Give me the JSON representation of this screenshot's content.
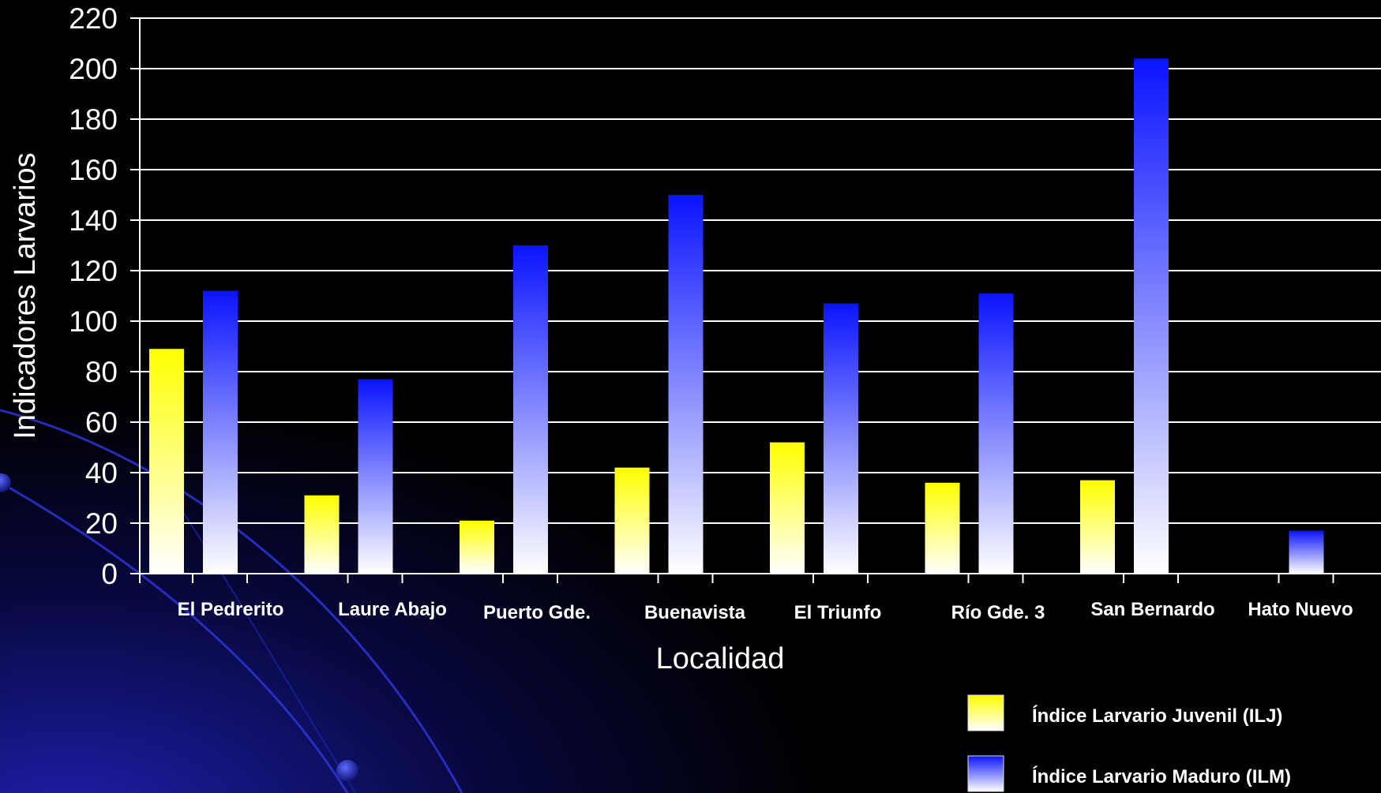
{
  "chart_data": {
    "type": "bar",
    "title": "",
    "xlabel": "Localidad",
    "ylabel": "Indicadores Larvarios",
    "ylim": [
      0,
      220
    ],
    "yticks": [
      0,
      20,
      40,
      60,
      80,
      100,
      120,
      140,
      160,
      180,
      200,
      220
    ],
    "grid": true,
    "legend_position": "bottom-right",
    "categories": [
      "El Pedrerito",
      "Laure Abajo",
      "Puerto Gde.",
      "Buenavista",
      "El Triunfo",
      "Río Gde. 3",
      "San Bernardo",
      "Hato Nuevo"
    ],
    "series": [
      {
        "name": "Índice Larvario Juvenil (ILJ)",
        "color": "#ffff00",
        "values": [
          89,
          31,
          21,
          42,
          52,
          36,
          37,
          0
        ]
      },
      {
        "name": "Índice Larvario Maduro (ILM)",
        "color": "#0000ff",
        "values": [
          112,
          77,
          130,
          150,
          107,
          111,
          204,
          17
        ]
      }
    ]
  }
}
